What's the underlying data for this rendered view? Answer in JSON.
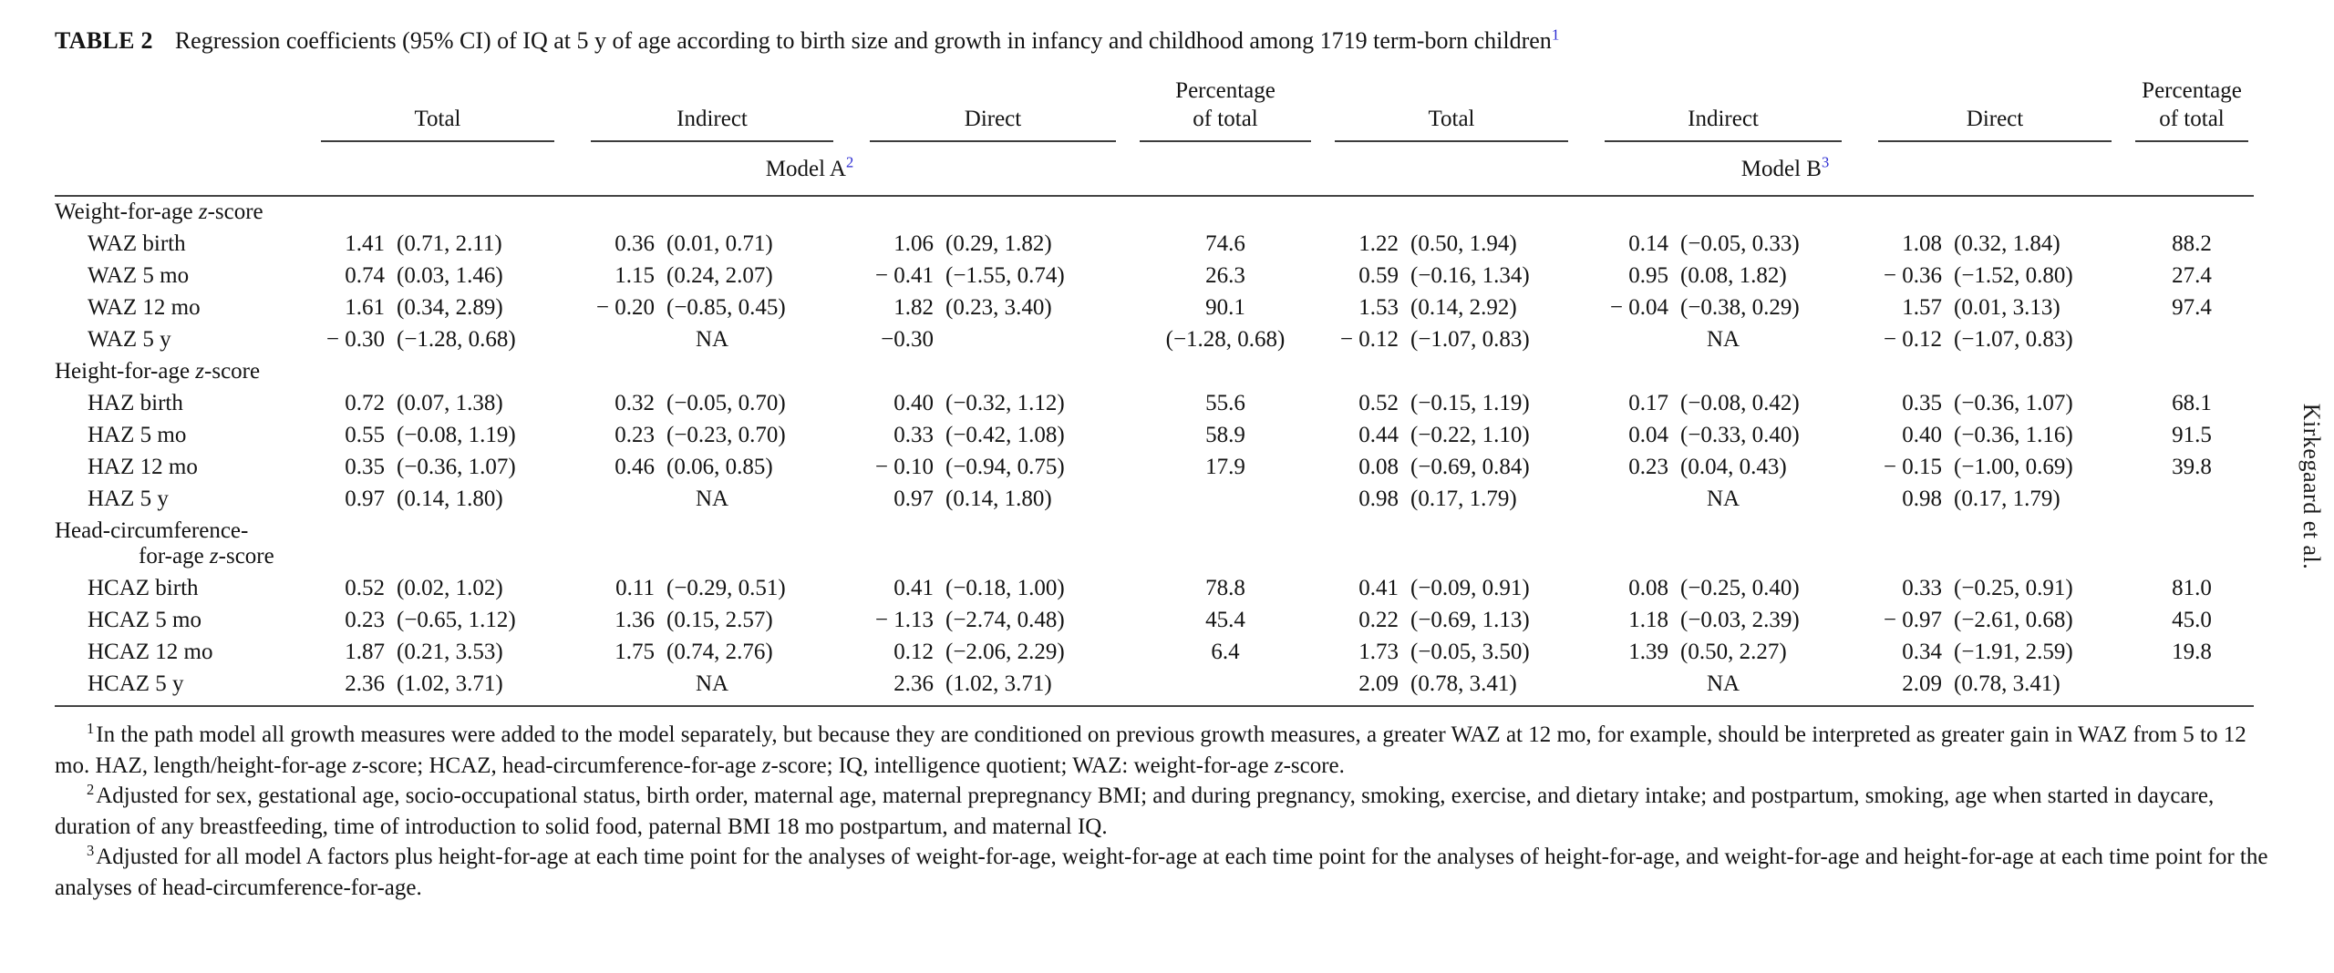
{
  "page": {
    "author_sidebar": "Kirkegaard et al."
  },
  "title": {
    "label": "TABLE 2",
    "text": "Regression coefficients (95% CI) of IQ at 5 y of age according to birth size and growth in infancy and childhood among 1719 term-born children",
    "footnote_ref": "1"
  },
  "accent_blue": "#2a2ad2",
  "table": {
    "col_headers": [
      "Total",
      "Indirect",
      "Direct",
      "Percentage\nof total"
    ],
    "model_a": {
      "label": "Model A",
      "footnote_ref": "2"
    },
    "model_b": {
      "label": "Model B",
      "footnote_ref": "3"
    },
    "sections": [
      {
        "header": "Weight-for-age z-score",
        "rows": [
          {
            "label": "WAZ birth",
            "a": {
              "total": [
                "1.41",
                "(0.71, 2.11)"
              ],
              "indirect": [
                "0.36",
                "(0.01, 0.71)"
              ],
              "direct": [
                "1.06",
                "(0.29, 1.82)"
              ],
              "pct": "74.6"
            },
            "b": {
              "total": [
                "1.22",
                "(0.50, 1.94)"
              ],
              "indirect": [
                "0.14",
                "(−0.05, 0.33)"
              ],
              "direct": [
                "1.08",
                "(0.32, 1.84)"
              ],
              "pct": "88.2"
            }
          },
          {
            "label": "WAZ 5 mo",
            "a": {
              "total": [
                "0.74",
                "(0.03, 1.46)"
              ],
              "indirect": [
                "1.15",
                "(0.24, 2.07)"
              ],
              "direct": [
                "− 0.41",
                "(−1.55, 0.74)"
              ],
              "pct": "26.3"
            },
            "b": {
              "total": [
                "0.59",
                "(−0.16, 1.34)"
              ],
              "indirect": [
                "0.95",
                "(0.08, 1.82)"
              ],
              "direct": [
                "− 0.36",
                "(−1.52, 0.80)"
              ],
              "pct": "27.4"
            }
          },
          {
            "label": "WAZ 12 mo",
            "a": {
              "total": [
                "1.61",
                "(0.34, 2.89)"
              ],
              "indirect": [
                "− 0.20",
                "(−0.85, 0.45)"
              ],
              "direct": [
                "1.82",
                "(0.23, 3.40)"
              ],
              "pct": "90.1"
            },
            "b": {
              "total": [
                "1.53",
                "(0.14, 2.92)"
              ],
              "indirect": [
                "− 0.04",
                "(−0.38, 0.29)"
              ],
              "direct": [
                "1.57",
                "(0.01, 3.13)"
              ],
              "pct": "97.4"
            }
          },
          {
            "label": "WAZ 5 y",
            "a": {
              "total": [
                "− 0.30",
                "(−1.28, 0.68)"
              ],
              "indirect": "NA",
              "direct": [
                "−0.30",
                ""
              ],
              "pct": "(−1.28, 0.68)"
            },
            "b": {
              "total": [
                "− 0.12",
                "(−1.07, 0.83)"
              ],
              "indirect": "NA",
              "direct": [
                "− 0.12",
                "(−1.07, 0.83)"
              ],
              "pct": ""
            }
          }
        ]
      },
      {
        "header": "Height-for-age z-score",
        "rows": [
          {
            "label": "HAZ birth",
            "a": {
              "total": [
                "0.72",
                "(0.07, 1.38)"
              ],
              "indirect": [
                "0.32",
                "(−0.05, 0.70)"
              ],
              "direct": [
                "0.40",
                "(−0.32, 1.12)"
              ],
              "pct": "55.6"
            },
            "b": {
              "total": [
                "0.52",
                "(−0.15, 1.19)"
              ],
              "indirect": [
                "0.17",
                "(−0.08, 0.42)"
              ],
              "direct": [
                "0.35",
                "(−0.36, 1.07)"
              ],
              "pct": "68.1"
            }
          },
          {
            "label": "HAZ 5 mo",
            "a": {
              "total": [
                "0.55",
                "(−0.08, 1.19)"
              ],
              "indirect": [
                "0.23",
                "(−0.23, 0.70)"
              ],
              "direct": [
                "0.33",
                "(−0.42, 1.08)"
              ],
              "pct": "58.9"
            },
            "b": {
              "total": [
                "0.44",
                "(−0.22, 1.10)"
              ],
              "indirect": [
                "0.04",
                "(−0.33, 0.40)"
              ],
              "direct": [
                "0.40",
                "(−0.36, 1.16)"
              ],
              "pct": "91.5"
            }
          },
          {
            "label": "HAZ 12 mo",
            "a": {
              "total": [
                "0.35",
                "(−0.36, 1.07)"
              ],
              "indirect": [
                "0.46",
                "(0.06, 0.85)"
              ],
              "direct": [
                "− 0.10",
                "(−0.94, 0.75)"
              ],
              "pct": "17.9"
            },
            "b": {
              "total": [
                "0.08",
                "(−0.69, 0.84)"
              ],
              "indirect": [
                "0.23",
                "(0.04, 0.43)"
              ],
              "direct": [
                "− 0.15",
                "(−1.00, 0.69)"
              ],
              "pct": "39.8"
            }
          },
          {
            "label": "HAZ 5 y",
            "a": {
              "total": [
                "0.97",
                "(0.14, 1.80)"
              ],
              "indirect": "NA",
              "direct": [
                "0.97",
                "(0.14, 1.80)"
              ],
              "pct": ""
            },
            "b": {
              "total": [
                "0.98",
                "(0.17, 1.79)"
              ],
              "indirect": "NA",
              "direct": [
                "0.98",
                "(0.17, 1.79)"
              ],
              "pct": ""
            }
          }
        ]
      },
      {
        "header": "Head-circumference-",
        "header2": "for-age z-score",
        "rows": [
          {
            "label": "HCAZ birth",
            "a": {
              "total": [
                "0.52",
                "(0.02, 1.02)"
              ],
              "indirect": [
                "0.11",
                "(−0.29, 0.51)"
              ],
              "direct": [
                "0.41",
                "(−0.18, 1.00)"
              ],
              "pct": "78.8"
            },
            "b": {
              "total": [
                "0.41",
                "(−0.09, 0.91)"
              ],
              "indirect": [
                "0.08",
                "(−0.25, 0.40)"
              ],
              "direct": [
                "0.33",
                "(−0.25, 0.91)"
              ],
              "pct": "81.0"
            }
          },
          {
            "label": "HCAZ 5 mo",
            "a": {
              "total": [
                "0.23",
                "(−0.65, 1.12)"
              ],
              "indirect": [
                "1.36",
                "(0.15, 2.57)"
              ],
              "direct": [
                "− 1.13",
                "(−2.74, 0.48)"
              ],
              "pct": "45.4"
            },
            "b": {
              "total": [
                "0.22",
                "(−0.69, 1.13)"
              ],
              "indirect": [
                "1.18",
                "(−0.03, 2.39)"
              ],
              "direct": [
                "− 0.97",
                "(−2.61, 0.68)"
              ],
              "pct": "45.0"
            }
          },
          {
            "label": "HCAZ 12 mo",
            "a": {
              "total": [
                "1.87",
                "(0.21, 3.53)"
              ],
              "indirect": [
                "1.75",
                "(0.74, 2.76)"
              ],
              "direct": [
                "0.12",
                "(−2.06, 2.29)"
              ],
              "pct": "6.4"
            },
            "b": {
              "total": [
                "1.73",
                "(−0.05, 3.50)"
              ],
              "indirect": [
                "1.39",
                "(0.50, 2.27)"
              ],
              "direct": [
                "0.34",
                "(−1.91, 2.59)"
              ],
              "pct": "19.8"
            }
          },
          {
            "label": "HCAZ 5 y",
            "a": {
              "total": [
                "2.36",
                "(1.02, 3.71)"
              ],
              "indirect": "NA",
              "direct": [
                "2.36",
                "(1.02, 3.71)"
              ],
              "pct": ""
            },
            "b": {
              "total": [
                "2.09",
                "(0.78, 3.41)"
              ],
              "indirect": "NA",
              "direct": [
                "2.09",
                "(0.78, 3.41)"
              ],
              "pct": ""
            }
          }
        ]
      }
    ]
  },
  "footnotes": [
    {
      "marker": "1",
      "text": "In the path model all growth measures were added to the model separately, but because they are conditioned on previous growth measures, a greater WAZ at 12 mo, for example, should be interpreted as greater gain in WAZ from 5 to 12 mo. HAZ, length/height-for-age z-score; HCAZ, head-circumference-for-age z-score; IQ, intelligence quotient; WAZ: weight-for-age z-score."
    },
    {
      "marker": "2",
      "text": "Adjusted for sex, gestational age, socio-occupational status, birth order, maternal age, maternal prepregnancy BMI; and during pregnancy, smoking, exercise, and dietary intake; and postpartum, smoking, age when started in daycare, duration of any breastfeeding, time of introduction to solid food, paternal BMI 18 mo postpartum, and maternal IQ."
    },
    {
      "marker": "3",
      "text": "Adjusted for all model A factors plus height-for-age at each time point for the analyses of weight-for-age, weight-for-age at each time point for the analyses of height-for-age, and weight-for-age and height-for-age at each time point for the analyses of head-circumference-for-age."
    }
  ]
}
